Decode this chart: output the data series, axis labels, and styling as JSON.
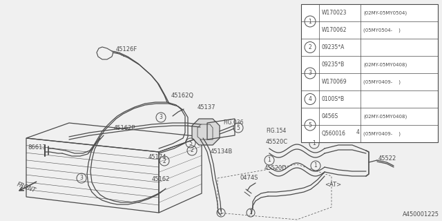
{
  "bg_color": "#f0f0f0",
  "line_color": "#505050",
  "fig_width": 6.4,
  "fig_height": 3.2,
  "dpi": 100,
  "watermark": "A450001225",
  "table_rows": [
    [
      "1",
      "W170023",
      "(02MY-05MY0504)"
    ],
    [
      "",
      "W170062",
      "(05MY0504-    )"
    ],
    [
      "2",
      "09235*A",
      ""
    ],
    [
      "3",
      "09235*B",
      "(02MY-05MY0408)"
    ],
    [
      "",
      "W170069",
      "(05MY0409-    )"
    ],
    [
      "4",
      "0100S*B",
      ""
    ],
    [
      "5",
      "0456S",
      "(02MY-05MY0408)"
    ],
    [
      "",
      "Q560016",
      "(05MY0409-    )"
    ]
  ]
}
